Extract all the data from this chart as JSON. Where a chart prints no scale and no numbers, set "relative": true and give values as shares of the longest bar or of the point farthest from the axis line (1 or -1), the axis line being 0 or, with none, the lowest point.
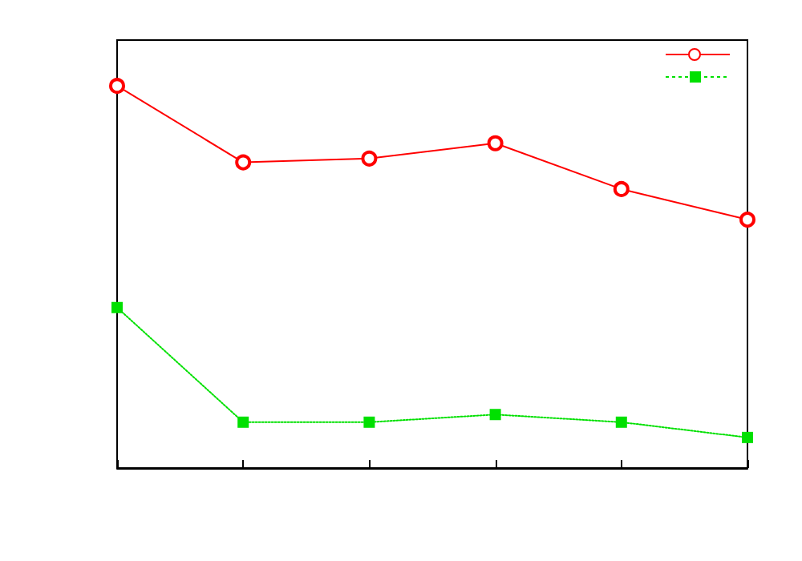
{
  "chart_data": {
    "type": "line",
    "relative": true,
    "categories": [
      null,
      null,
      null,
      null,
      null,
      null
    ],
    "series": [
      {
        "color": "#ff0000",
        "marker": "circle",
        "line_style": "solid",
        "values": [
          1,
          0.8,
          0.81,
          0.85,
          0.73,
          0.65
        ]
      },
      {
        "color": "#00e000",
        "marker": "square",
        "line_style": "dotted",
        "values": [
          0.42,
          0.12,
          0.12,
          0.14,
          0.12,
          0.08
        ]
      }
    ],
    "grid": false
  }
}
